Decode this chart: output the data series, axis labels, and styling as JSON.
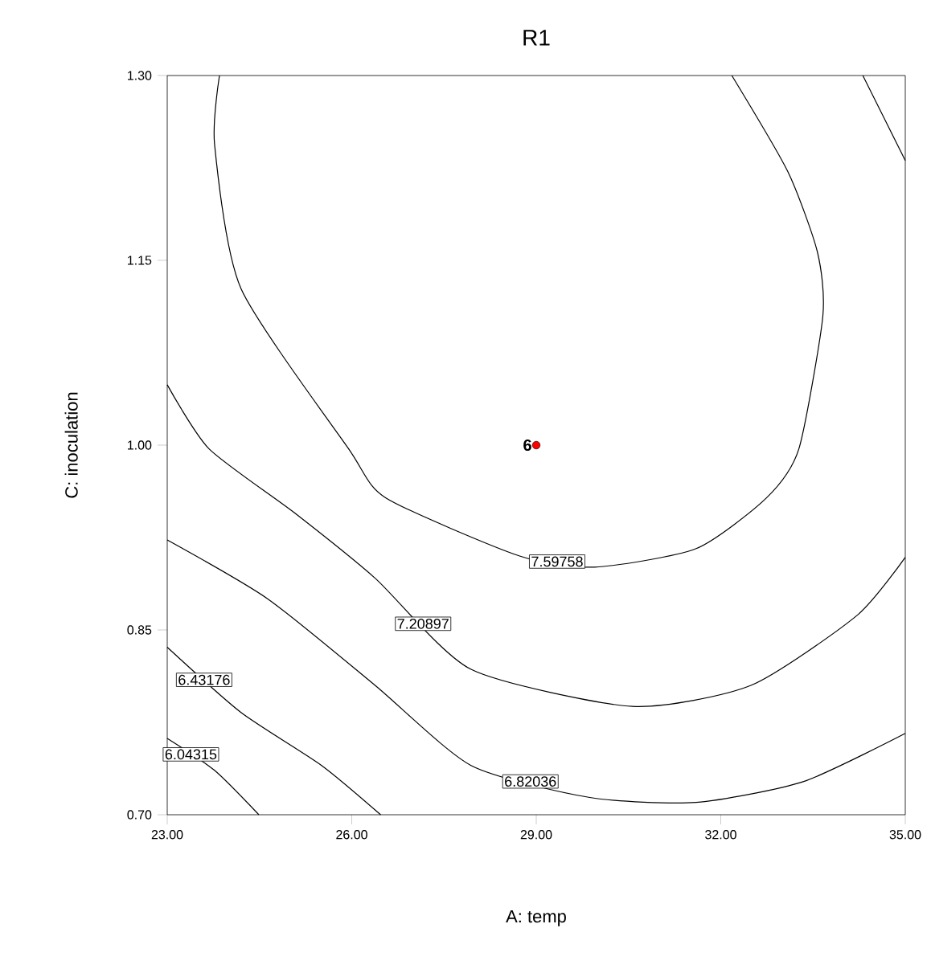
{
  "chart_data": {
    "type": "line",
    "title": "R1",
    "xlabel": "A: temp",
    "ylabel": "C: inoculation",
    "xlim": [
      23,
      35
    ],
    "ylim": [
      0.7,
      1.3
    ],
    "xticks": [
      {
        "value": 23,
        "label": "23.00"
      },
      {
        "value": 26,
        "label": "26.00"
      },
      {
        "value": 29,
        "label": "29.00"
      },
      {
        "value": 32,
        "label": "32.00"
      },
      {
        "value": 35,
        "label": "35.00"
      }
    ],
    "yticks": [
      {
        "value": 0.7,
        "label": "0.70"
      },
      {
        "value": 0.85,
        "label": "0.85"
      },
      {
        "value": 1.0,
        "label": "1.00"
      },
      {
        "value": 1.15,
        "label": "1.15"
      },
      {
        "value": 1.3,
        "label": "1.30"
      }
    ],
    "grid": false,
    "legend": false,
    "line_style": "solid",
    "series": [
      {
        "name": "7.59758",
        "color": "#000000",
        "x": [
          23.85,
          23.77,
          24.2,
          25.95,
          26.56,
          28.73,
          29.95,
          31.6,
          32.74,
          33.27,
          33.66,
          33.57,
          33.09,
          32.18
        ],
        "values": [
          1.3,
          1.244,
          1.127,
          0.997,
          0.957,
          0.91,
          0.901,
          0.916,
          0.957,
          0.997,
          1.105,
          1.157,
          1.222,
          1.3
        ]
      },
      {
        "name": "7.20897",
        "color": "#000000",
        "x": [
          23,
          23.68,
          25.07,
          26.38,
          27.94,
          30.56,
          32.49,
          34.22,
          35,
          null,
          34.31,
          35
        ],
        "values": [
          1.049,
          0.997,
          0.945,
          0.892,
          0.818,
          0.788,
          0.805,
          0.862,
          0.909,
          null,
          1.3,
          1.231
        ]
      },
      {
        "name": "6.82036",
        "color": "#000000",
        "x": [
          23,
          24.64,
          26.38,
          27.94,
          29.87,
          31.6,
          33.35,
          35
        ],
        "values": [
          0.923,
          0.875,
          0.805,
          0.74,
          0.714,
          0.71,
          0.727,
          0.766
        ]
      },
      {
        "name": "6.43176",
        "color": "#000000",
        "x": [
          23,
          24.2,
          25.51,
          26.47
        ],
        "values": [
          0.836,
          0.783,
          0.74,
          0.7
        ]
      },
      {
        "name": "6.04315",
        "color": "#000000",
        "x": [
          23,
          23.77,
          24.49
        ],
        "values": [
          0.762,
          0.736,
          0.7
        ]
      },
      {
        "type": "scatter",
        "color": "#ff0000",
        "x": [
          29
        ],
        "values": [
          1.0
        ]
      }
    ],
    "annotations": [
      {
        "text": "6",
        "x": 29,
        "y": 1.0
      }
    ]
  }
}
